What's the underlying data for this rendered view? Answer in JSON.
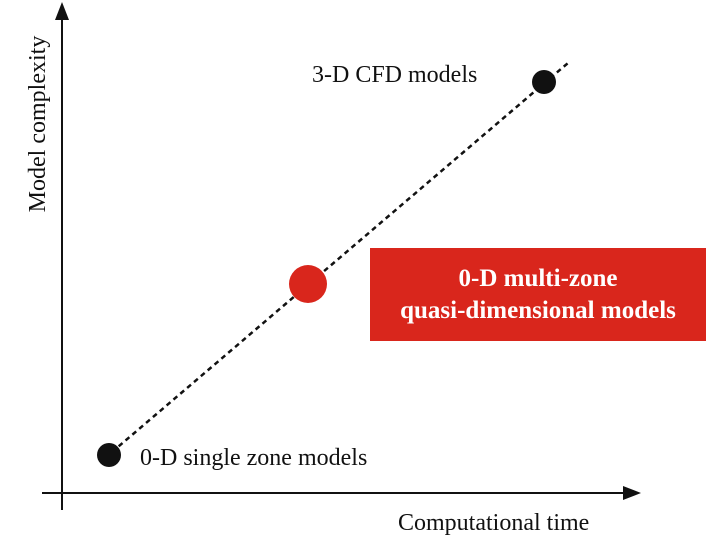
{
  "axes": {
    "y_label": "Model complexity",
    "x_label": "Computational time"
  },
  "points": [
    {
      "label": "0-D single zone models",
      "color": "#111111"
    },
    {
      "label": "0-D multi-zone quasi-dimensional models",
      "color": "#d9261c"
    },
    {
      "label": "3-D CFD models",
      "color": "#111111"
    }
  ],
  "callout": {
    "line1": "0-D multi-zone",
    "line2": "quasi-dimensional models",
    "background": "#d9261c",
    "text_color": "#ffffff"
  },
  "colors": {
    "axis": "#111111",
    "trend_line": "#111111",
    "highlight": "#d9261c"
  }
}
